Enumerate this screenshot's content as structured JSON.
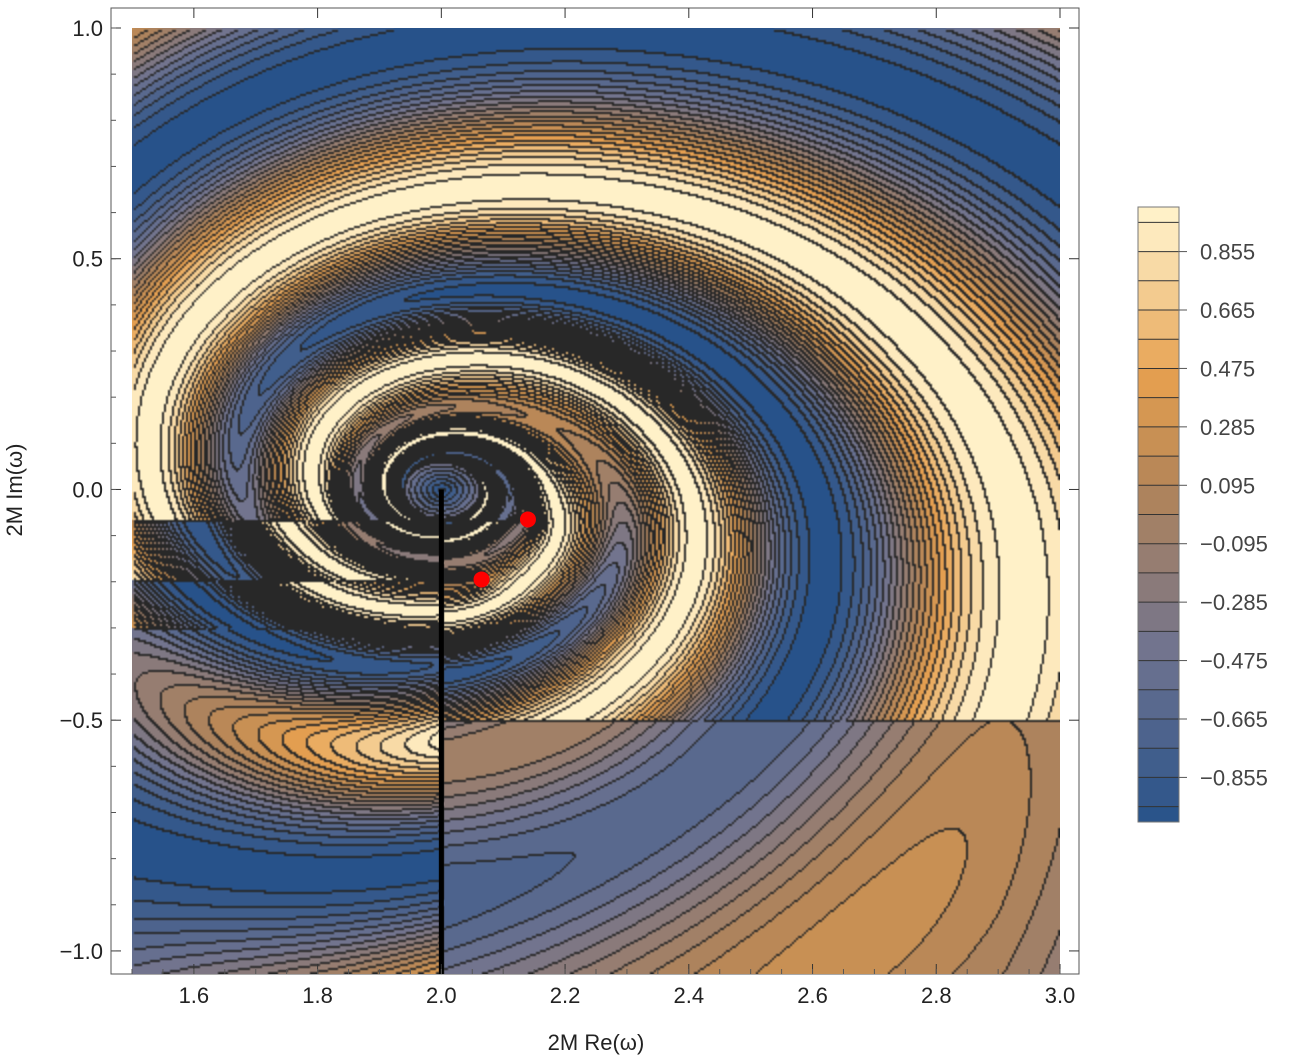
{
  "chart_data": {
    "type": "contour",
    "xlabel": "2M Re(ω)",
    "ylabel": "2M Im(ω)",
    "xlim": [
      1.5,
      3.0
    ],
    "ylim": [
      -1.05,
      1.0
    ],
    "x_ticks": [
      1.6,
      1.8,
      2.0,
      2.2,
      2.4,
      2.6,
      2.8,
      3.0
    ],
    "x_tick_labels": [
      "1.6",
      "1.8",
      "2.0",
      "2.2",
      "2.4",
      "2.6",
      "2.8",
      "3.0"
    ],
    "y_ticks": [
      1.0,
      0.5,
      0.0,
      -0.5,
      -1.0
    ],
    "y_tick_labels": [
      "1.0",
      "0.5",
      "0.0",
      "−0.5",
      "−1.0"
    ],
    "branch_cut": {
      "x": 2.0,
      "y_from": -1.05,
      "y_to": 0.0
    },
    "highlighted_points": [
      {
        "x": 2.14,
        "y": -0.065,
        "color": "#ff0000"
      },
      {
        "x": 2.065,
        "y": -0.195,
        "color": "#ff0000"
      }
    ],
    "contour_levels": [
      -0.95,
      -0.855,
      -0.76,
      -0.665,
      -0.57,
      -0.475,
      -0.38,
      -0.285,
      -0.19,
      -0.095,
      0.0,
      0.095,
      0.19,
      0.285,
      0.38,
      0.475,
      0.57,
      0.665,
      0.76,
      0.855,
      0.95
    ],
    "legend": {
      "placement": "right",
      "range": [
        -1.0,
        1.0
      ],
      "tick_values": [
        0.855,
        0.665,
        0.475,
        0.285,
        0.095,
        -0.095,
        -0.285,
        -0.475,
        -0.665,
        -0.855
      ],
      "tick_labels": [
        "0.855",
        "0.665",
        "0.475",
        "0.285",
        "0.095",
        "−0.095",
        "−0.285",
        "−0.475",
        "−0.665",
        "−0.855"
      ]
    },
    "colors": {
      "low": "#27528a",
      "mid_low": "#6f7390",
      "mid": "#b48558",
      "mid_high": "#e6a04f",
      "high": "#fff1c8",
      "contour_line": "#1a1a1a",
      "point": "#ff0000"
    }
  }
}
